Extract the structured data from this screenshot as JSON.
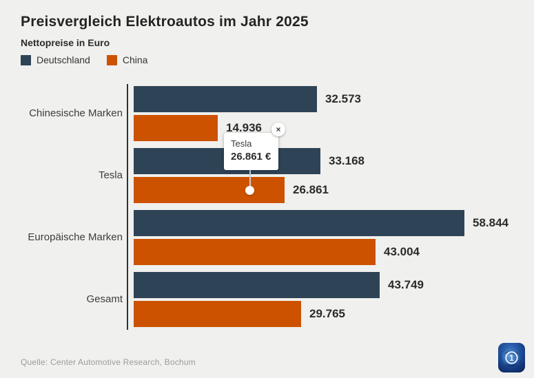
{
  "chart_data": {
    "type": "bar",
    "orientation": "horizontal",
    "title": "Preisvergleich Elektroautos im Jahr 2025",
    "subtitle": "Nettopreise in Euro",
    "legend_position": "top-left",
    "grid": false,
    "categories": [
      "Chinesische Marken",
      "Tesla",
      "Europäische Marken",
      "Gesamt"
    ],
    "series": [
      {
        "name": "Deutschland",
        "color": "#2e4356",
        "values": [
          32573,
          33168,
          58844,
          43749
        ],
        "value_labels": [
          "32.573",
          "33.168",
          "58.844",
          "43.749"
        ]
      },
      {
        "name": "China",
        "color": "#cc5200",
        "values": [
          14936,
          26861,
          43004,
          29765
        ],
        "value_labels": [
          "14.936",
          "26.861",
          "43.004",
          "29.765"
        ]
      }
    ],
    "xmax": 58844,
    "unit": "Euro"
  },
  "tooltip": {
    "title": "Tesla",
    "value": "26.861 €",
    "close_icon": "×"
  },
  "footer": {
    "source": "Quelle: Center Automotive Research, Bochum",
    "logo_icon": "ard-tagesschau-globe-logo"
  },
  "colors": {
    "background": "#f0f0ee",
    "deutschland": "#2e4356",
    "china": "#cc5200",
    "axis": "#303030",
    "value_text": "#2b2b2b",
    "source_text": "#9b9b9b"
  }
}
